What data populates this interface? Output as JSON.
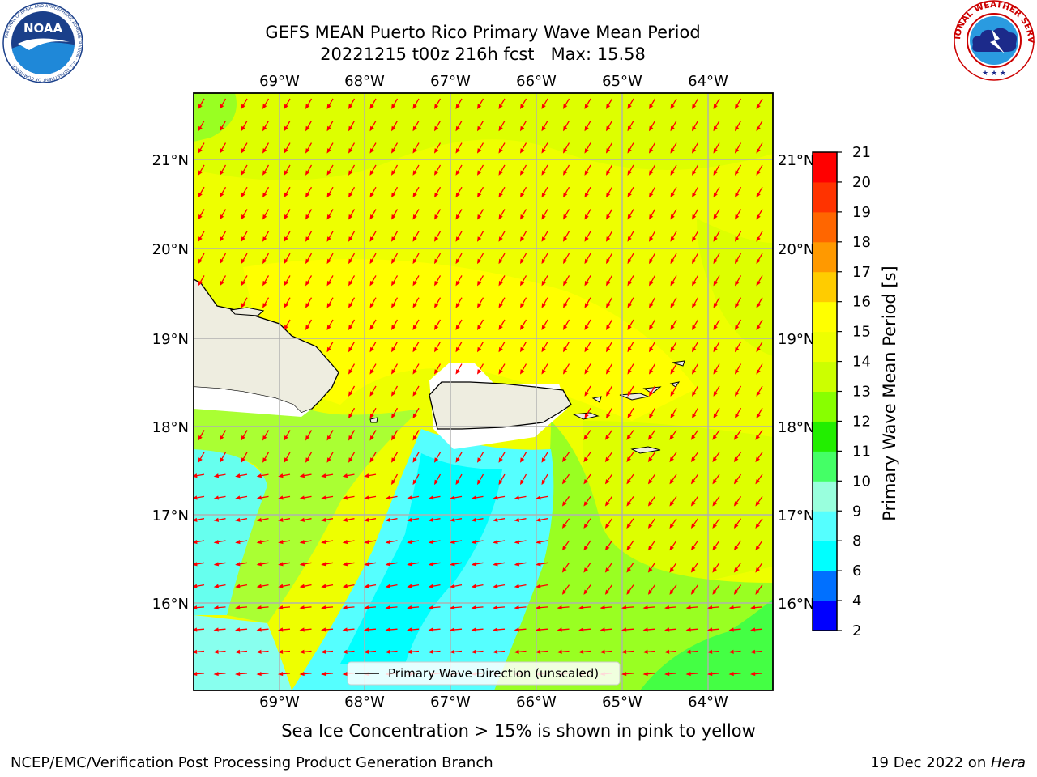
{
  "header": {
    "title_line1": "GEFS MEAN Puerto Rico Primary Wave Mean Period",
    "title_line2": "20221215 t00z 216h fcst   Max: 15.58"
  },
  "logos": {
    "left": {
      "name": "noaa-logo",
      "text": "NOAA",
      "ring_text": "NATIONAL OCEANIC AND ATMOSPHERIC ADMINISTRATION · U.S. DEPARTMENT OF COMMERCE"
    },
    "right": {
      "name": "nws-logo",
      "ring_text": "NATIONAL WEATHER SERVICE"
    }
  },
  "map": {
    "lon_labels": [
      "69°W",
      "68°W",
      "67°W",
      "66°W",
      "65°W",
      "64°W"
    ],
    "lat_labels": [
      "21°N",
      "20°N",
      "19°N",
      "18°N",
      "17°N",
      "16°N"
    ],
    "legend_label": "Primary Wave Direction (unscaled)",
    "arrow_color": "#ff0000",
    "land_color": "#eeede0",
    "grid_color": "#b0b0b0"
  },
  "colorbar": {
    "title": "Primary Wave Mean Period [s]",
    "ticks": [
      "2",
      "4",
      "6",
      "8",
      "9",
      "10",
      "11",
      "12",
      "13",
      "14",
      "15",
      "16",
      "17",
      "18",
      "19",
      "20",
      "21"
    ],
    "colors": [
      "#0000ff",
      "#0070ff",
      "#00ffff",
      "#55ffff",
      "#99ffdd",
      "#44ff66",
      "#22ee00",
      "#88ff00",
      "#ccff00",
      "#eeff00",
      "#ffff00",
      "#ffcc00",
      "#ff9900",
      "#ff6600",
      "#ff3300",
      "#ff0000"
    ]
  },
  "caption": "Sea Ice Concentration > 15% is shown in pink to yellow",
  "footer": {
    "left": "NCEP/EMC/Verification Post Processing Product Generation Branch",
    "right_date": "19 Dec 2022 on ",
    "right_host": "Hera"
  }
}
